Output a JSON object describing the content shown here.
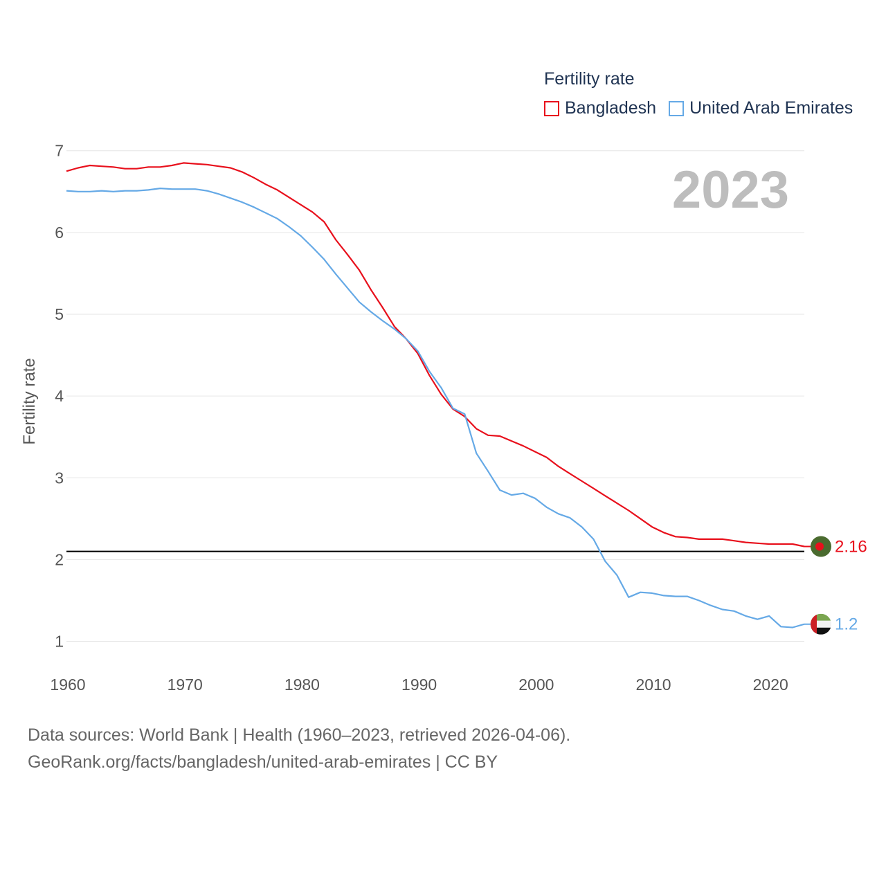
{
  "chart_data": {
    "type": "line",
    "legend_title": "Fertility rate",
    "ylabel": "Fertility rate",
    "xlabel": "",
    "current_year_label": "2023",
    "xlim": [
      1960,
      2023
    ],
    "ylim": [
      0.7,
      7.15
    ],
    "x_ticks": [
      1960,
      1970,
      1980,
      1990,
      2000,
      2010,
      2020
    ],
    "y_ticks": [
      1,
      2,
      3,
      4,
      5,
      6,
      7
    ],
    "reference_line": 2.1,
    "grid": true,
    "legend_position": "top-right",
    "series": [
      {
        "name": "Bangladesh",
        "color": "#e8101c",
        "end_label": "2.16",
        "flag_icon": "bangladesh-flag-icon",
        "x": [
          1960,
          1961,
          1962,
          1963,
          1964,
          1965,
          1966,
          1967,
          1968,
          1969,
          1970,
          1971,
          1972,
          1973,
          1974,
          1975,
          1976,
          1977,
          1978,
          1979,
          1980,
          1981,
          1982,
          1983,
          1984,
          1985,
          1986,
          1987,
          1988,
          1989,
          1990,
          1991,
          1992,
          1993,
          1994,
          1995,
          1996,
          1997,
          1998,
          1999,
          2000,
          2001,
          2002,
          2003,
          2004,
          2005,
          2006,
          2007,
          2008,
          2009,
          2010,
          2011,
          2012,
          2013,
          2014,
          2015,
          2016,
          2017,
          2018,
          2019,
          2020,
          2021,
          2022,
          2023
        ],
        "values": [
          6.75,
          6.79,
          6.82,
          6.81,
          6.8,
          6.78,
          6.78,
          6.8,
          6.8,
          6.82,
          6.85,
          6.84,
          6.83,
          6.81,
          6.79,
          6.74,
          6.67,
          6.59,
          6.52,
          6.43,
          6.34,
          6.25,
          6.13,
          5.91,
          5.73,
          5.54,
          5.3,
          5.08,
          4.85,
          4.7,
          4.52,
          4.25,
          4.02,
          3.84,
          3.75,
          3.6,
          3.52,
          3.51,
          3.45,
          3.39,
          3.32,
          3.25,
          3.14,
          3.05,
          2.96,
          2.87,
          2.78,
          2.69,
          2.6,
          2.5,
          2.4,
          2.33,
          2.28,
          2.27,
          2.25,
          2.25,
          2.25,
          2.23,
          2.21,
          2.2,
          2.19,
          2.19,
          2.19,
          2.16
        ]
      },
      {
        "name": "United Arab Emirates",
        "color": "#65a9e6",
        "end_label": "1.2",
        "flag_icon": "uae-flag-icon",
        "x": [
          1960,
          1961,
          1962,
          1963,
          1964,
          1965,
          1966,
          1967,
          1968,
          1969,
          1970,
          1971,
          1972,
          1973,
          1974,
          1975,
          1976,
          1977,
          1978,
          1979,
          1980,
          1981,
          1982,
          1983,
          1984,
          1985,
          1986,
          1987,
          1988,
          1989,
          1990,
          1991,
          1992,
          1993,
          1994,
          1995,
          1996,
          1997,
          1998,
          1999,
          2000,
          2001,
          2002,
          2003,
          2004,
          2005,
          2006,
          2007,
          2008,
          2009,
          2010,
          2011,
          2012,
          2013,
          2014,
          2015,
          2016,
          2017,
          2018,
          2019,
          2020,
          2021,
          2022,
          2023
        ],
        "values": [
          6.51,
          6.5,
          6.5,
          6.51,
          6.5,
          6.51,
          6.51,
          6.52,
          6.54,
          6.53,
          6.53,
          6.53,
          6.51,
          6.47,
          6.42,
          6.37,
          6.31,
          6.24,
          6.17,
          6.07,
          5.96,
          5.82,
          5.67,
          5.49,
          5.32,
          5.15,
          5.03,
          4.92,
          4.82,
          4.7,
          4.55,
          4.3,
          4.1,
          3.85,
          3.78,
          3.3,
          3.08,
          2.85,
          2.79,
          2.81,
          2.75,
          2.64,
          2.56,
          2.51,
          2.4,
          2.25,
          1.98,
          1.81,
          1.54,
          1.6,
          1.59,
          1.56,
          1.55,
          1.55,
          1.5,
          1.44,
          1.39,
          1.37,
          1.31,
          1.27,
          1.31,
          1.18,
          1.17,
          1.21
        ]
      }
    ]
  },
  "footer": {
    "line1": "Data sources: World Bank | Health (1960–2023, retrieved 2026-04-06).",
    "line2": "GeoRank.org/facts/bangladesh/united-arab-emirates | CC BY"
  },
  "colors": {
    "grid": "#e6e6e6",
    "reference_line": "#000000",
    "bangladesh_flag_green": "#4a6b2f",
    "bangladesh_flag_red": "#e8101c",
    "uae_flag_red": "#cc1f25",
    "uae_flag_green": "#7aa550",
    "uae_flag_white": "#f2f2f2",
    "uae_flag_black": "#111111"
  }
}
